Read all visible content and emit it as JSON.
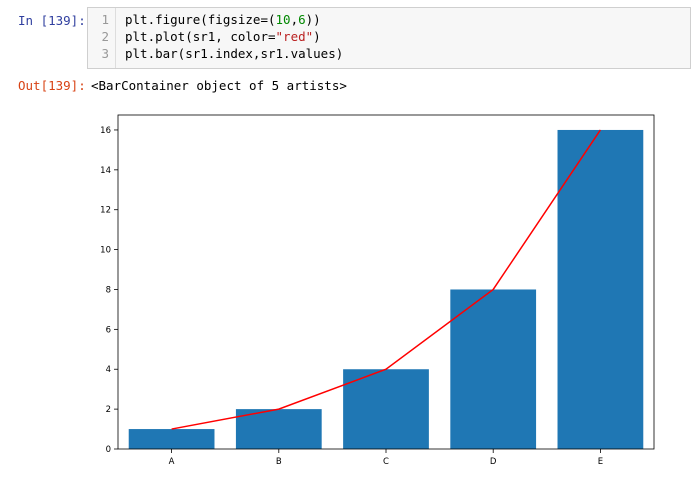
{
  "input": {
    "prompt": "In [139]:",
    "lines": [
      {
        "num": "1",
        "tokens": [
          {
            "text": "plt.figure(figsize=(",
            "type": "plain"
          },
          {
            "text": "10",
            "type": "num"
          },
          {
            "text": ",",
            "type": "plain"
          },
          {
            "text": "6",
            "type": "num"
          },
          {
            "text": "))",
            "type": "plain"
          }
        ]
      },
      {
        "num": "2",
        "tokens": [
          {
            "text": "plt.plot(sr1, color=",
            "type": "plain"
          },
          {
            "text": "\"red\"",
            "type": "str"
          },
          {
            "text": ")",
            "type": "plain"
          }
        ]
      },
      {
        "num": "3",
        "tokens": [
          {
            "text": "plt.bar(sr1.index,sr1.values)",
            "type": "plain"
          }
        ]
      }
    ]
  },
  "output": {
    "prompt": "Out[139]:",
    "text": "<BarContainer object of 5 artists>"
  },
  "chart_data": {
    "type": "bar",
    "categories": [
      "A",
      "B",
      "C",
      "D",
      "E"
    ],
    "series": [
      {
        "kind": "bar",
        "values": [
          1,
          2,
          4,
          8,
          16
        ],
        "color": "#1f77b4"
      },
      {
        "kind": "line",
        "values": [
          1,
          2,
          4,
          8,
          16
        ],
        "color": "#ff0000"
      }
    ],
    "ylim": [
      0,
      16.75
    ],
    "yticks": [
      0,
      2,
      4,
      6,
      8,
      10,
      12,
      14,
      16
    ],
    "xlabel": "",
    "ylabel": "",
    "title": "",
    "grid": false,
    "legend": "none"
  }
}
